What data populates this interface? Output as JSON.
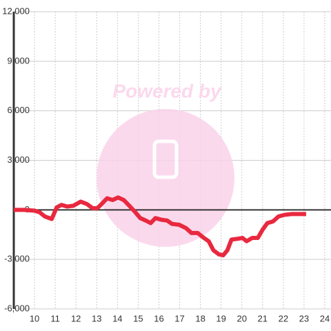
{
  "chart_data": {
    "type": "line",
    "watermark": "Powered by",
    "x": [
      9,
      9.5,
      10,
      10.25,
      10.5,
      10.83,
      11.07,
      11.3,
      11.57,
      11.87,
      12.23,
      12.53,
      12.8,
      13.03,
      13.27,
      13.5,
      13.77,
      14.03,
      14.3,
      14.57,
      14.83,
      15.1,
      15.37,
      15.6,
      15.83,
      16.13,
      16.4,
      16.63,
      16.97,
      17.3,
      17.57,
      17.87,
      18.17,
      18.4,
      18.63,
      18.9,
      19.1,
      19.3,
      19.5,
      19.8,
      20.03,
      20.23,
      20.5,
      20.77,
      21,
      21.23,
      21.5,
      21.77,
      22.07,
      22.43,
      23.1
    ],
    "series": [
      {
        "color": "#e8293f",
        "values": [
          0,
          0,
          -50,
          -150,
          -400,
          -550,
          150,
          300,
          200,
          250,
          500,
          350,
          100,
          100,
          400,
          700,
          600,
          750,
          600,
          250,
          -100,
          -500,
          -650,
          -800,
          -500,
          -600,
          -650,
          -850,
          -900,
          -1100,
          -1400,
          -1400,
          -1700,
          -1900,
          -2450,
          -2700,
          -2750,
          -2450,
          -1800,
          -1750,
          -1700,
          -1900,
          -1700,
          -1700,
          -1200,
          -800,
          -700,
          -400,
          -300,
          -250,
          -250
        ]
      }
    ],
    "xlim": [
      9,
      24.3
    ],
    "xticks": [
      10,
      11,
      12,
      13,
      14,
      15,
      16,
      17,
      18,
      19,
      20,
      21,
      22,
      23,
      24
    ],
    "ylim": [
      -6000,
      12000
    ],
    "yticks": [
      {
        "value": -6000,
        "label": "-6,000"
      },
      {
        "value": -3000,
        "label": "-3,000"
      },
      0,
      {
        "value": 3000,
        "label": "3,000"
      },
      {
        "value": 6000,
        "label": "6,000"
      },
      {
        "value": 9000,
        "label": "9,000"
      },
      {
        "value": 12000,
        "label": "12,000"
      }
    ],
    "grid": true
  }
}
